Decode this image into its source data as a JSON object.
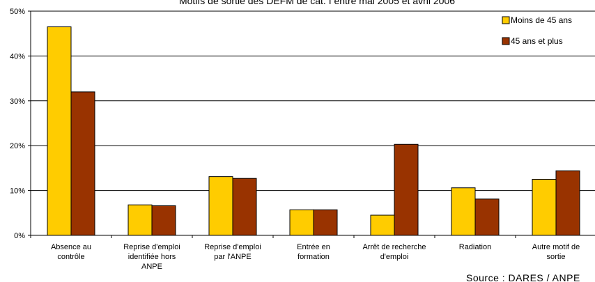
{
  "chart_data": {
    "type": "bar",
    "title": "Motifs de sortie des DEFM de cat. I entre mai 2005 et avril 2006",
    "source": "Source : DARES / ANPE",
    "categories": [
      [
        "Absence au",
        "contrôle"
      ],
      [
        "Reprise d'emploi",
        "identifiée hors",
        "ANPE"
      ],
      [
        "Reprise d'emploi",
        "par l'ANPE"
      ],
      [
        "Entrée en",
        "formation"
      ],
      [
        "Arrêt de recherche",
        "d'emploi"
      ],
      [
        "Radiation"
      ],
      [
        "Autre motif de",
        "sortie"
      ]
    ],
    "series": [
      {
        "name": "Moins de 45 ans",
        "color": "#FFCC00",
        "values": [
          46.5,
          6.8,
          13.1,
          5.7,
          4.5,
          10.6,
          12.5
        ]
      },
      {
        "name": "45 ans et plus",
        "color": "#993300",
        "values": [
          32.0,
          6.6,
          12.7,
          5.7,
          20.3,
          8.1,
          14.4
        ]
      }
    ],
    "ylim": [
      0,
      50
    ],
    "yticks": [
      "0%",
      "10%",
      "20%",
      "30%",
      "40%",
      "50%"
    ],
    "grid": true,
    "legend_position": "top-right"
  }
}
